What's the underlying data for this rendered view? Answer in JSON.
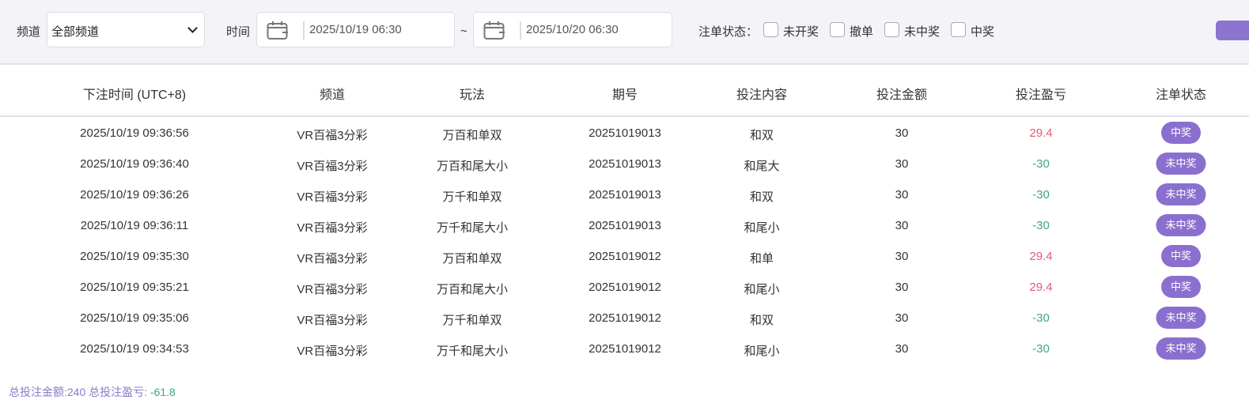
{
  "filters": {
    "channel_label": "频道",
    "channel_value": "全部频道",
    "time_label": "时间",
    "start_date": "2025/10/19 06:30",
    "range_sep": "~",
    "end_date": "2025/10/20 06:30",
    "status_label": "注单状态：",
    "status_options": [
      {
        "label": "未开奖",
        "checked": false
      },
      {
        "label": "撤单",
        "checked": false
      },
      {
        "label": "未中奖",
        "checked": false
      },
      {
        "label": "中奖",
        "checked": false
      }
    ]
  },
  "colors": {
    "accent": "#8b6fcf",
    "positive": "#e05a75",
    "negative": "#3fa67e"
  },
  "table": {
    "columns": [
      "下注时间 (UTC+8)",
      "频道",
      "玩法",
      "期号",
      "投注内容",
      "投注金额",
      "投注盈亏",
      "注单状态"
    ],
    "rows": [
      [
        "2025/10/19 09:36:56",
        "VR百福3分彩",
        "万百和单双",
        "20251019013",
        "和双",
        "30",
        "29.4",
        "中奖"
      ],
      [
        "2025/10/19 09:36:40",
        "VR百福3分彩",
        "万百和尾大小",
        "20251019013",
        "和尾大",
        "30",
        "-30",
        "未中奖"
      ],
      [
        "2025/10/19 09:36:26",
        "VR百福3分彩",
        "万千和单双",
        "20251019013",
        "和双",
        "30",
        "-30",
        "未中奖"
      ],
      [
        "2025/10/19 09:36:11",
        "VR百福3分彩",
        "万千和尾大小",
        "20251019013",
        "和尾小",
        "30",
        "-30",
        "未中奖"
      ],
      [
        "2025/10/19 09:35:30",
        "VR百福3分彩",
        "万百和单双",
        "20251019012",
        "和单",
        "30",
        "29.4",
        "中奖"
      ],
      [
        "2025/10/19 09:35:21",
        "VR百福3分彩",
        "万百和尾大小",
        "20251019012",
        "和尾小",
        "30",
        "29.4",
        "中奖"
      ],
      [
        "2025/10/19 09:35:06",
        "VR百福3分彩",
        "万千和单双",
        "20251019012",
        "和双",
        "30",
        "-30",
        "未中奖"
      ],
      [
        "2025/10/19 09:34:53",
        "VR百福3分彩",
        "万千和尾大小",
        "20251019012",
        "和尾小",
        "30",
        "-30",
        "未中奖"
      ]
    ]
  },
  "summary": {
    "total_bet_label": "总投注金额:",
    "total_bet": "240",
    "total_pl_label": "总投注盈亏:",
    "total_pl": "-61.8"
  }
}
